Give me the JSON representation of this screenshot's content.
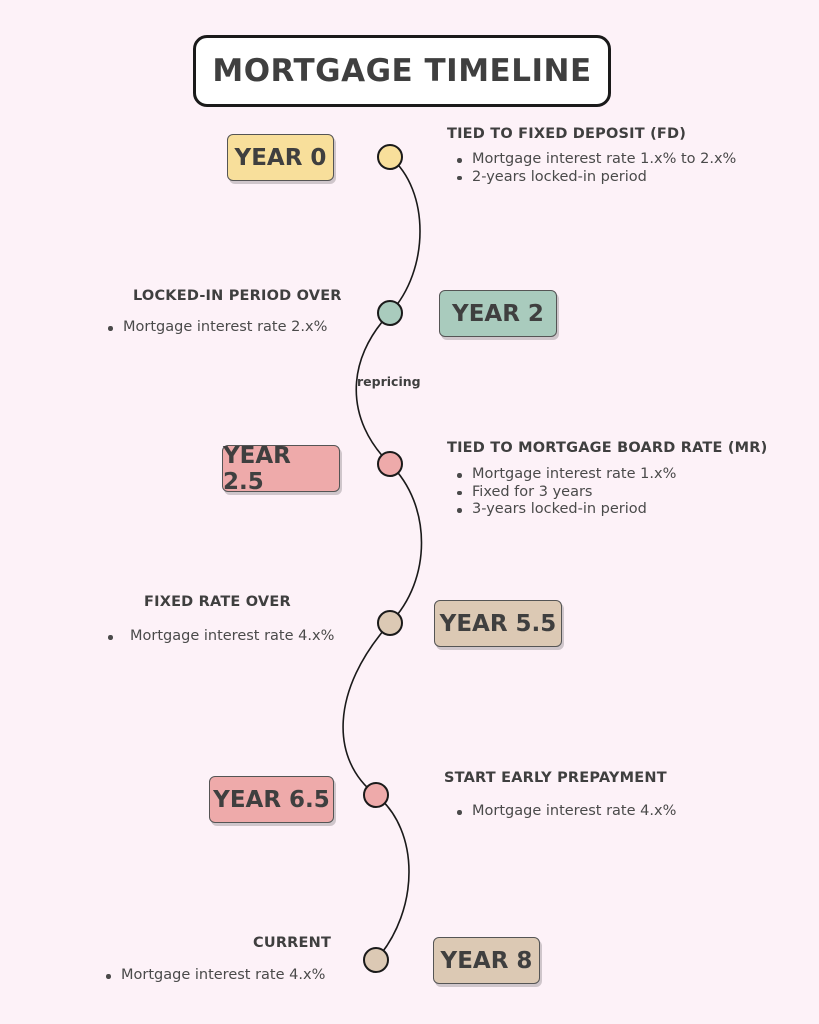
{
  "title": "MORTGAGE TIMELINE",
  "colors": {
    "yellow": "#f8df9b",
    "green": "#a9cbbd",
    "pink": "#eeaaaa",
    "tan": "#dcc9b4",
    "line": "#1a1a1a"
  },
  "milestones": [
    {
      "year": "YEAR 0",
      "color": "#f8df9b",
      "heading": "TIED TO FIXED DEPOSIT (FD)",
      "bullets": [
        "Mortgage interest rate 1.x% to 2.x%",
        "2-years locked-in period"
      ]
    },
    {
      "year": "YEAR 2",
      "color": "#a9cbbd",
      "heading": "LOCKED-IN PERIOD OVER",
      "bullets": [
        "Mortgage interest rate 2.x%"
      ]
    },
    {
      "year": "YEAR 2.5",
      "color": "#eeaaaa",
      "heading": "TIED TO MORTGAGE BOARD RATE (MR)",
      "bullets": [
        "Mortgage interest rate 1.x%",
        "Fixed for 3 years",
        "3-years locked-in period"
      ]
    },
    {
      "year": "YEAR 5.5",
      "color": "#dcc9b4",
      "heading": "FIXED RATE OVER",
      "bullets": [
        "Mortgage interest rate 4.x%"
      ]
    },
    {
      "year": "YEAR 6.5",
      "color": "#eeaaaa",
      "heading": "START EARLY PREPAYMENT",
      "bullets": [
        "Mortgage interest rate 4.x%"
      ]
    },
    {
      "year": "YEAR 8",
      "color": "#dcc9b4",
      "heading": "CURRENT",
      "bullets": [
        "Mortgage interest rate 4.x%"
      ]
    }
  ],
  "repricing_label": "repricing"
}
